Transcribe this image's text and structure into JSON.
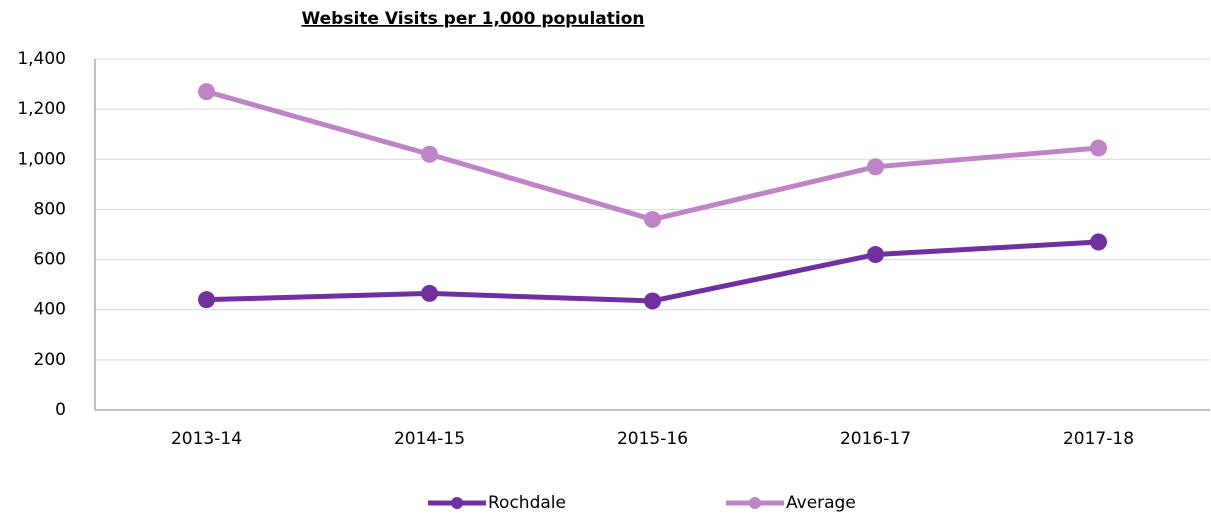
{
  "chart_data": {
    "type": "line",
    "title": "Website Visits per 1,000 population",
    "categories": [
      "2013-14",
      "2014-15",
      "2015-16",
      "2016-17",
      "2017-18"
    ],
    "series": [
      {
        "name": "Rochdale",
        "color": "#7030a0",
        "values": [
          440,
          465,
          435,
          620,
          670
        ]
      },
      {
        "name": "Average",
        "color": "#bf84c6",
        "values": [
          1270,
          1020,
          760,
          970,
          1045
        ]
      }
    ],
    "ylim": [
      0,
      1400
    ],
    "yticks": [
      0,
      200,
      400,
      600,
      800,
      {
        "value": 1000,
        "label": "1,000"
      },
      {
        "value": 1200,
        "label": "1,200"
      },
      {
        "value": 1400,
        "label": "1,400"
      }
    ],
    "grid": true,
    "legend": "bottom"
  }
}
